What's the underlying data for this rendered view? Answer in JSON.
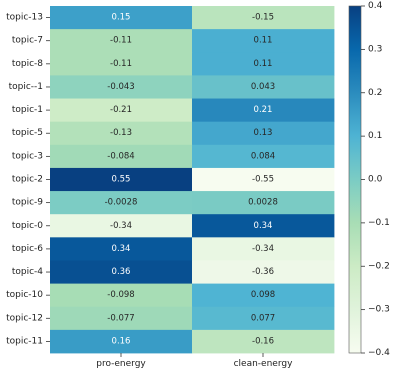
{
  "chart_data": {
    "type": "heatmap",
    "title": "",
    "xlabel": "",
    "ylabel": "",
    "columns": [
      "pro-energy",
      "clean-energy"
    ],
    "rows": [
      "topic-13",
      "topic-7",
      "topic-8",
      "topic--1",
      "topic-1",
      "topic-5",
      "topic-3",
      "topic-2",
      "topic-9",
      "topic-0",
      "topic-6",
      "topic-4",
      "topic-10",
      "topic-12",
      "topic-11"
    ],
    "values": [
      [
        0.15,
        -0.15
      ],
      [
        -0.11,
        0.11
      ],
      [
        -0.11,
        0.11
      ],
      [
        -0.043,
        0.043
      ],
      [
        -0.21,
        0.21
      ],
      [
        -0.13,
        0.13
      ],
      [
        -0.084,
        0.084
      ],
      [
        0.55,
        -0.55
      ],
      [
        -0.0028,
        0.0028
      ],
      [
        -0.34,
        0.34
      ],
      [
        0.34,
        -0.34
      ],
      [
        0.36,
        -0.36
      ],
      [
        -0.098,
        0.098
      ],
      [
        -0.077,
        0.077
      ],
      [
        0.16,
        -0.16
      ]
    ],
    "value_labels": [
      [
        "0.15",
        "-0.15"
      ],
      [
        "-0.11",
        "0.11"
      ],
      [
        "-0.11",
        "0.11"
      ],
      [
        "-0.043",
        "0.043"
      ],
      [
        "-0.21",
        "0.21"
      ],
      [
        "-0.13",
        "0.13"
      ],
      [
        "-0.084",
        "0.084"
      ],
      [
        "0.55",
        "-0.55"
      ],
      [
        "-0.0028",
        "0.0028"
      ],
      [
        "-0.34",
        "0.34"
      ],
      [
        "0.34",
        "-0.34"
      ],
      [
        "0.36",
        "-0.36"
      ],
      [
        "-0.098",
        "0.098"
      ],
      [
        "-0.077",
        "0.077"
      ],
      [
        "0.16",
        "-0.16"
      ]
    ],
    "colormap": "GnBu",
    "color_range": [
      -0.4,
      0.4
    ],
    "colorbar_ticks": [
      0.4,
      0.3,
      0.2,
      0.1,
      0.0,
      -0.1,
      -0.2,
      -0.3,
      -0.4
    ],
    "colorbar_tick_labels": [
      "0.4",
      "0.3",
      "0.2",
      "0.1",
      "0.0",
      "−0.1",
      "−0.2",
      "−0.3",
      "−0.4"
    ],
    "colorbar_placement": "right",
    "grid": false
  }
}
